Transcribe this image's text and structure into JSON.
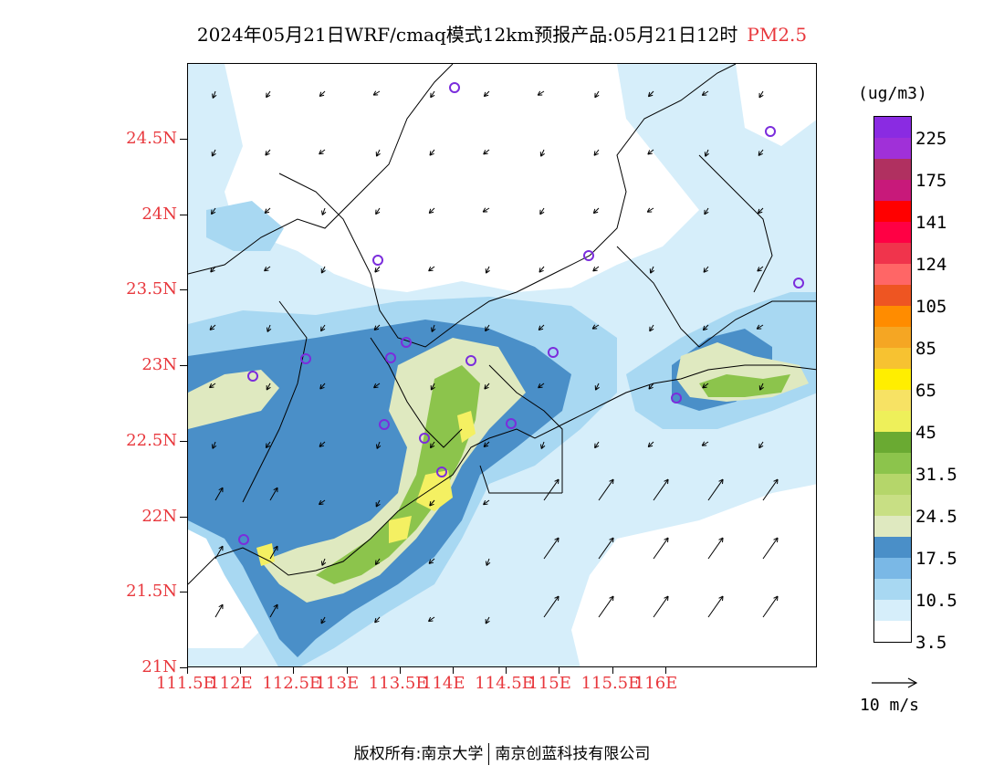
{
  "title": {
    "text": "2024年05月21日WRF/cmaq模式12km预报产品:05月21日12时",
    "pollutant": "PM2.5"
  },
  "map": {
    "lat_labels": [
      "24.5N",
      "24N",
      "23.5N",
      "23N",
      "22.5N",
      "22N",
      "21.5N",
      "21N"
    ],
    "lon_labels": [
      "111.5E",
      "112E",
      "112.5E",
      "113E",
      "113.5E",
      "114E",
      "114.5E",
      "115E",
      "115.5E",
      "116E"
    ],
    "colors": {
      "background": "#ffffff",
      "level_3_5": "#d6eefa",
      "level_10_5": "#a8d8f2",
      "level_17_5": "#4a8fc8",
      "level_24_5": "#dfe9c0",
      "level_31_5": "#8cc44c",
      "level_45": "#f4f062",
      "station_marker": "#7b2ddc",
      "boundary": "#000000"
    }
  },
  "legend": {
    "unit": "(ug/m3)",
    "colors": [
      "#8a2be2",
      "#a030d8",
      "#b03060",
      "#c8197a",
      "#ff0000",
      "#ff0044",
      "#f0344c",
      "#ff6666",
      "#ee5522",
      "#ff8c00",
      "#f5a623",
      "#f7c231",
      "#ffee00",
      "#f7e264",
      "#eef05a",
      "#6aaa32",
      "#8cc44c",
      "#b5d66a",
      "#c8df84",
      "#dfe9c0",
      "#4a8fc8",
      "#7ab8e6",
      "#a8d8f2",
      "#d6eefa",
      "#ffffff"
    ],
    "labels": [
      "225",
      "175",
      "141",
      "124",
      "105",
      "85",
      "65",
      "45",
      "31.5",
      "24.5",
      "17.5",
      "10.5",
      "3.5"
    ]
  },
  "wind_reference": {
    "label": "10 m/s"
  },
  "footer": {
    "left": "版权所有:南京大学",
    "right": "南京创蓝科技有限公司"
  }
}
